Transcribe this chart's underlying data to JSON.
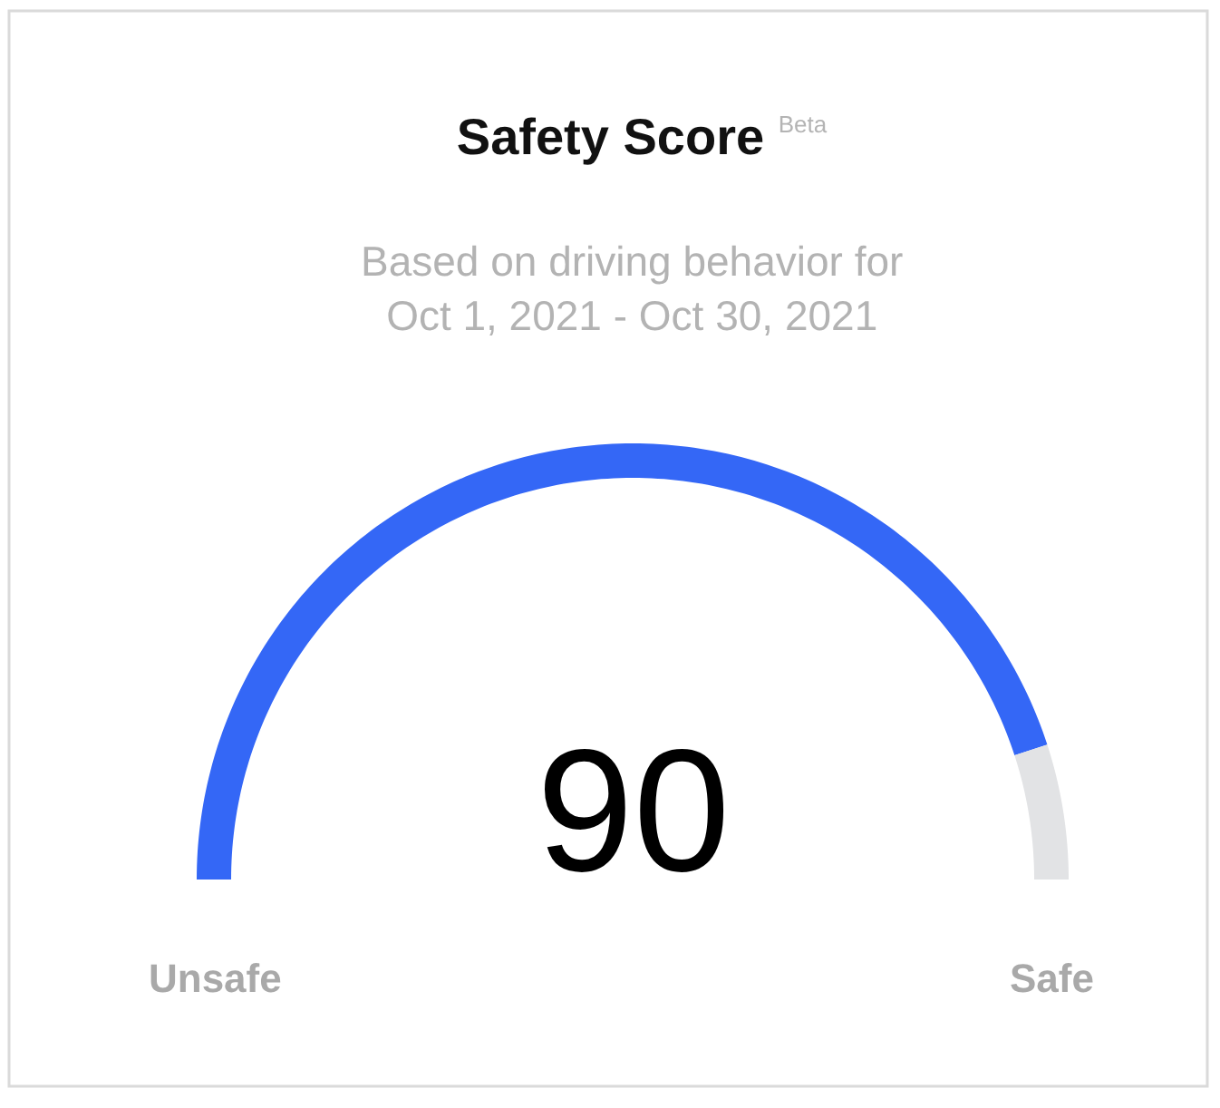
{
  "chart_data": {
    "type": "donut",
    "title": "Safety Score $^{Beta}$",
    "subtitle": "Based on driving behavior for\nOct 1, 2021 - Oct 30, 2021",
    "categories": [
      null,
      null
    ],
    "values": [
      90,
      10
    ],
    "colors": [
      "#3467f6",
      "#e2e3e5"
    ],
    "value_labels": [
      "90",
      null
    ],
    "annotations": [
      "Unsafe",
      "Safe"
    ]
  }
}
